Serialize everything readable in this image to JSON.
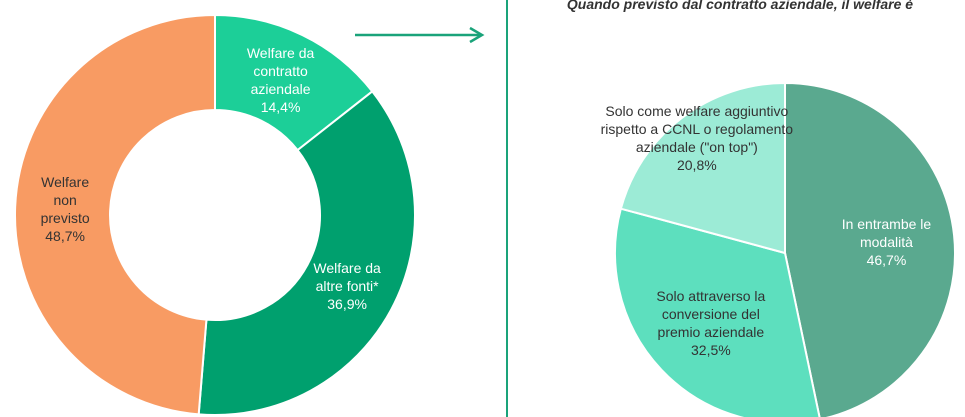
{
  "chart_data": [
    {
      "type": "donut",
      "categories": [
        "Welfare da contratto aziendale",
        "Welfare da altre fonti*",
        "Welfare non previsto"
      ],
      "values": [
        14.4,
        36.9,
        48.7
      ],
      "value_labels": [
        "14,4%",
        "36,9%",
        "48,7%"
      ],
      "colors": [
        "#1ccf98",
        "#00a06e",
        "#f89b63"
      ]
    },
    {
      "type": "pie",
      "title": "Quando previsto dal contratto aziendale, il welfare è",
      "categories": [
        "In entrambe le modalità",
        "Solo attraverso la conversione del premio aziendale",
        "Solo come welfare aggiuntivo rispetto a CCNL o regolamento aziendale (\"on top\")"
      ],
      "values": [
        46.7,
        32.5,
        20.8
      ],
      "value_labels": [
        "46,7%",
        "32,5%",
        "20,8%"
      ],
      "colors": [
        "#5aa98f",
        "#5ddfbe",
        "#9cebd6"
      ]
    }
  ]
}
